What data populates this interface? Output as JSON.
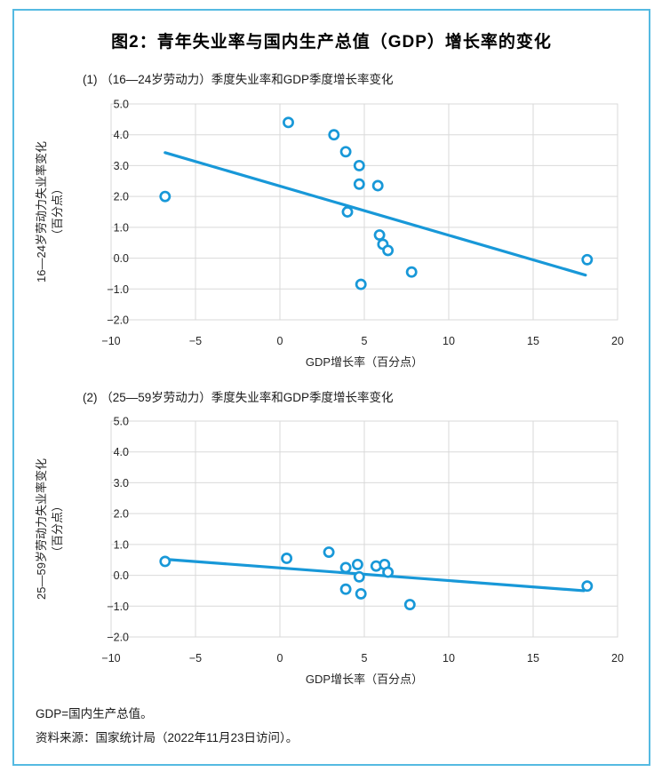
{
  "figure": {
    "title": "图2：青年失业率与国内生产总值（GDP）增长率的变化",
    "footnotes": [
      "GDP=国内生产总值。",
      "资料来源：国家统计局（2022年11月23日访问）。"
    ]
  },
  "colors": {
    "accent": "#1898D8",
    "frame_border": "#55BAE2",
    "gridline": "#D9D9D9",
    "tick_text": "#262626"
  },
  "chart_data": [
    {
      "type": "scatter",
      "panel_title": "(1) （16—24岁劳动力）季度失业率和GDP季度增长率变化",
      "xlabel": "GDP增长率（百分点）",
      "ylabel_lines": [
        "16—24岁劳动力失业率变化",
        "（百分点）"
      ],
      "xlim": [
        -10,
        20
      ],
      "ylim": [
        -2,
        5
      ],
      "grid": true,
      "legend": "none",
      "marker": "open-circle",
      "xtick_values": [
        -10,
        -5,
        0,
        5,
        10,
        15,
        20
      ],
      "xtick_labels": [
        "−10",
        "−5",
        "0",
        "5",
        "10",
        "15",
        "20"
      ],
      "ytick_values": [
        5,
        4,
        3,
        2,
        1,
        0,
        -1,
        -2
      ],
      "ytick_labels": [
        "5.0",
        "4.0",
        "3.0",
        "2.0",
        "1.0",
        "0.0",
        "−1.0",
        "−2.0"
      ],
      "points": [
        [
          -6.8,
          2.0
        ],
        [
          0.5,
          4.4
        ],
        [
          3.2,
          4.0
        ],
        [
          3.9,
          3.45
        ],
        [
          4.7,
          3.0
        ],
        [
          4.7,
          2.4
        ],
        [
          5.8,
          2.35
        ],
        [
          4.0,
          1.5
        ],
        [
          5.9,
          0.75
        ],
        [
          6.1,
          0.45
        ],
        [
          6.4,
          0.25
        ],
        [
          4.8,
          -0.85
        ],
        [
          7.8,
          -0.45
        ],
        [
          18.2,
          -0.05
        ]
      ],
      "trendline": {
        "x1": -6.8,
        "y1": 3.42,
        "x2": 18.1,
        "y2": -0.55
      }
    },
    {
      "type": "scatter",
      "panel_title": "(2) （25—59岁劳动力）季度失业率和GDP季度增长率变化",
      "xlabel": "GDP增长率（百分点）",
      "ylabel_lines": [
        "25—59岁劳动力失业率变化",
        "（百分点）"
      ],
      "xlim": [
        -10,
        20
      ],
      "ylim": [
        -2,
        5
      ],
      "grid": true,
      "legend": "none",
      "marker": "open-circle",
      "xtick_values": [
        -10,
        -5,
        0,
        5,
        10,
        15,
        20
      ],
      "xtick_labels": [
        "−10",
        "−5",
        "0",
        "5",
        "10",
        "15",
        "20"
      ],
      "ytick_values": [
        5,
        4,
        3,
        2,
        1,
        0,
        -1,
        -2
      ],
      "ytick_labels": [
        "5.0",
        "4.0",
        "3.0",
        "2.0",
        "1.0",
        "0.0",
        "−1.0",
        "−2.0"
      ],
      "points": [
        [
          -6.8,
          0.45
        ],
        [
          0.4,
          0.55
        ],
        [
          2.9,
          0.75
        ],
        [
          3.9,
          0.25
        ],
        [
          4.6,
          0.35
        ],
        [
          4.7,
          -0.05
        ],
        [
          3.9,
          -0.45
        ],
        [
          4.8,
          -0.6
        ],
        [
          5.7,
          0.3
        ],
        [
          6.2,
          0.35
        ],
        [
          6.4,
          0.1
        ],
        [
          7.7,
          -0.95
        ],
        [
          18.2,
          -0.35
        ]
      ],
      "trendline": {
        "x1": -6.85,
        "y1": 0.52,
        "x2": 18.0,
        "y2": -0.5
      }
    }
  ]
}
